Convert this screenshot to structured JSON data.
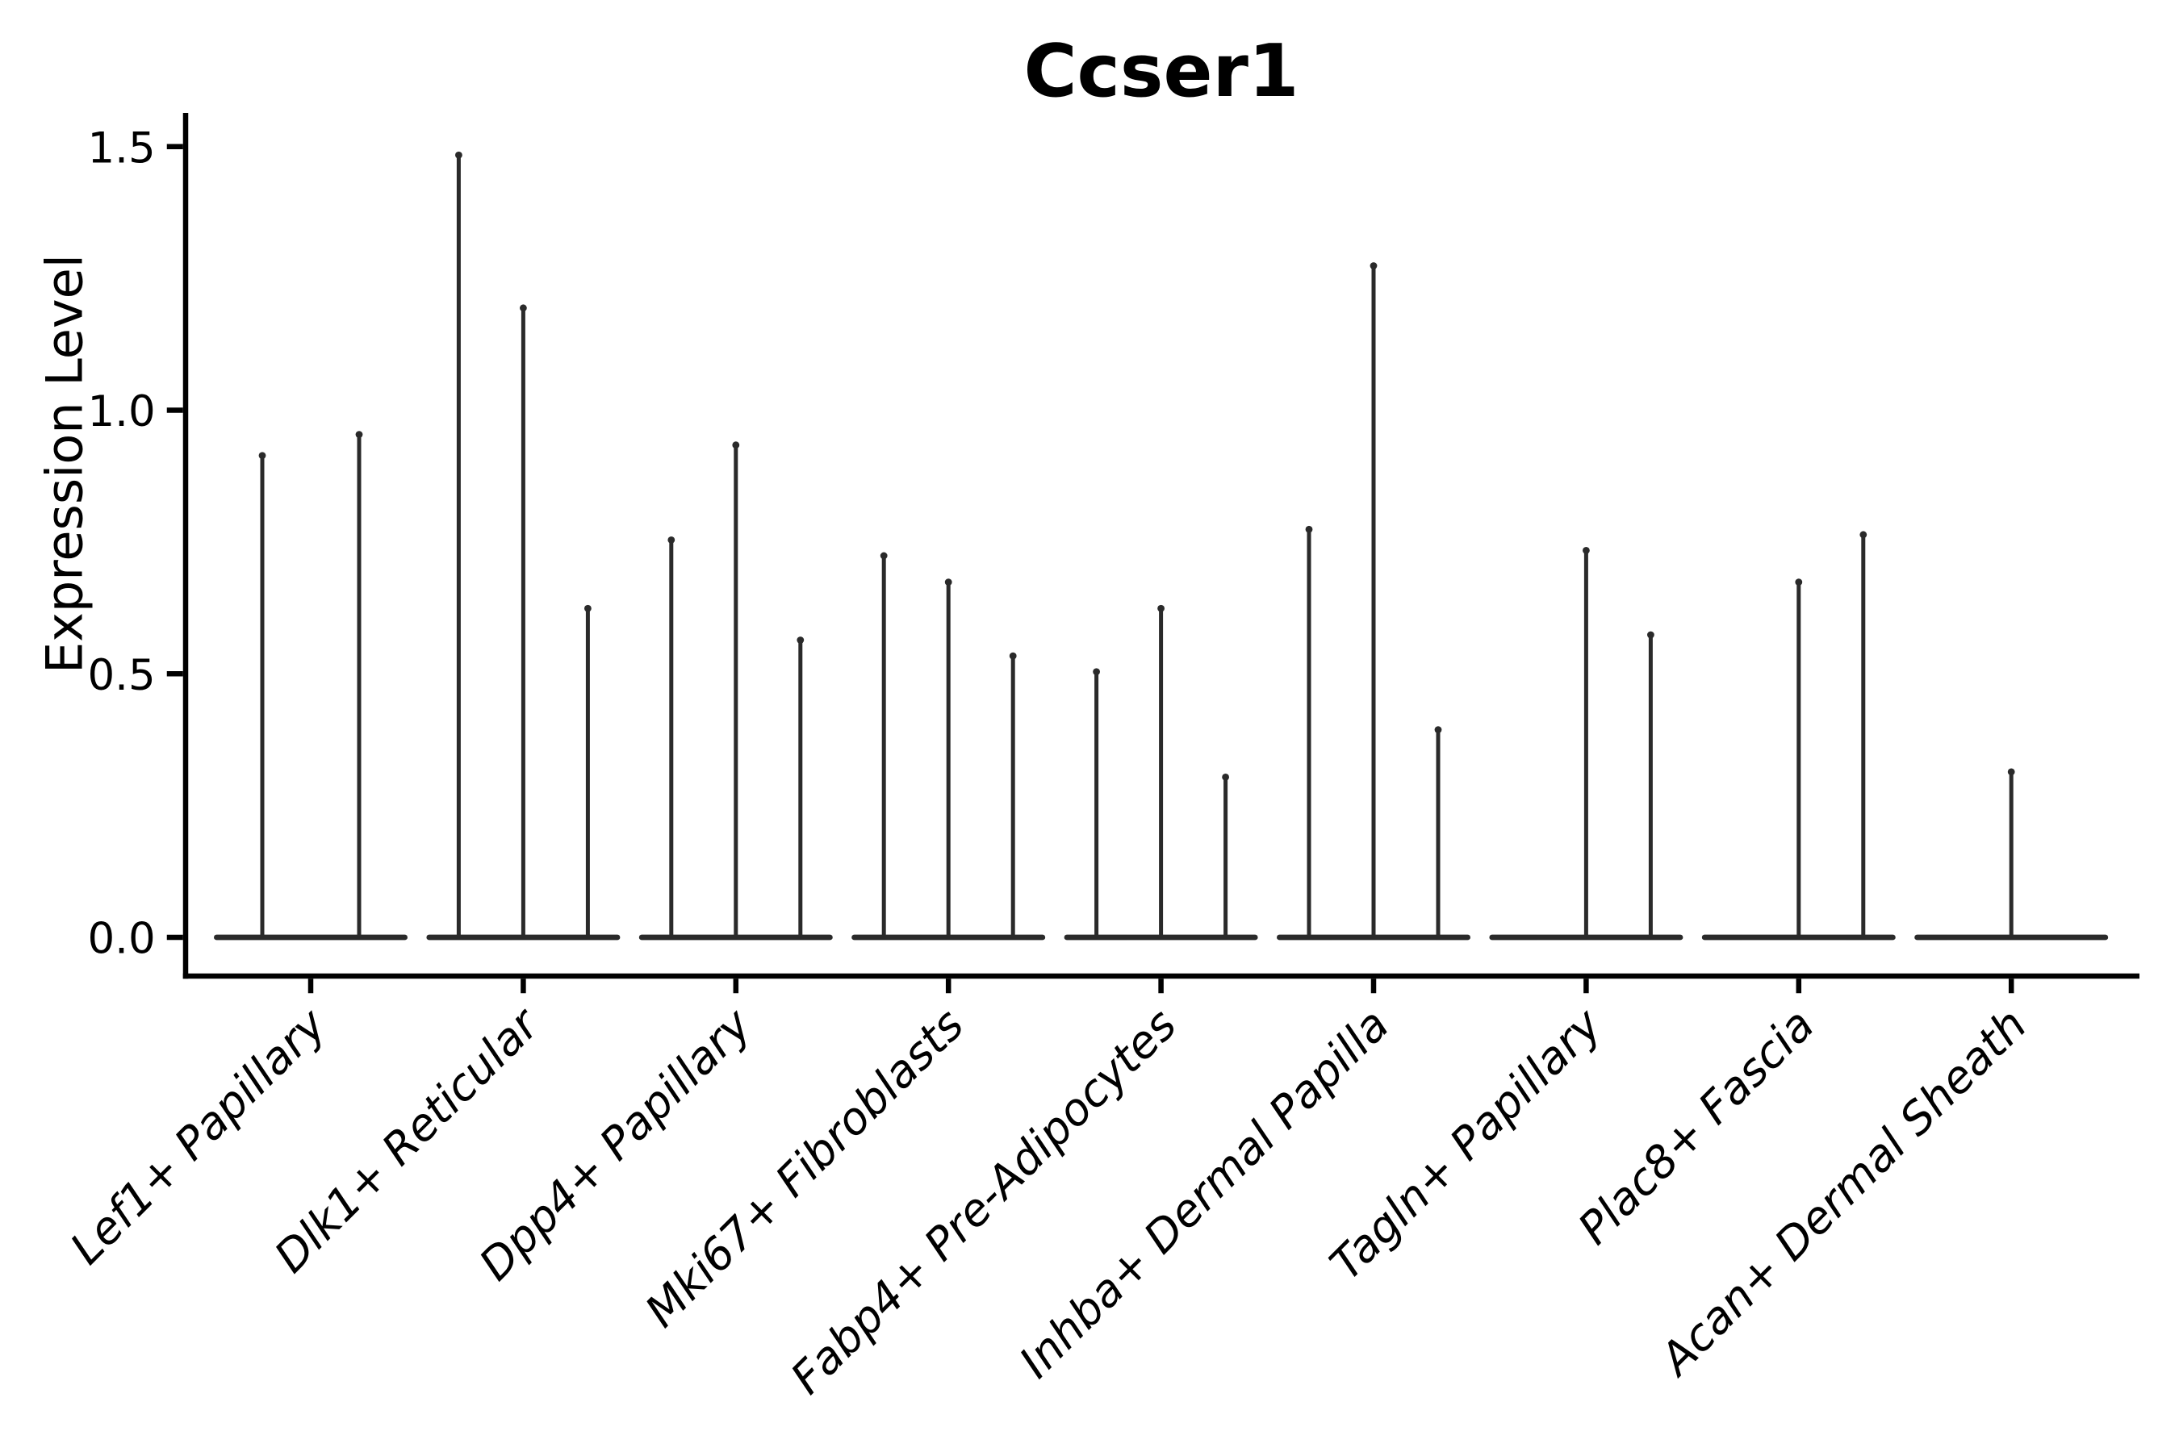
{
  "figure": {
    "title": "Ccser1",
    "ylabel": "Expression Level",
    "background": "#ffffff"
  },
  "chart_data": {
    "type": "violin",
    "title": "Ccser1",
    "xlabel": "",
    "ylabel": "Expression Level",
    "grid": false,
    "legend": null,
    "ylim": [
      -0.07,
      1.56
    ],
    "yticks": [
      {
        "value": 0.0,
        "label": "0.0"
      },
      {
        "value": 0.5,
        "label": "0.5"
      },
      {
        "value": 1.0,
        "label": "1.0"
      },
      {
        "value": 1.5,
        "label": "1.5"
      }
    ],
    "categories": [
      "Lef1+ Papillary",
      "Dlk1+ Reticular",
      "Dpp4+ Papillary",
      "Mki67+ Fibroblasts",
      "Fabp4+ Pre-Adipocytes",
      "Inhba+ Dermal Papilla",
      "Tagln+ Papillary",
      "Plac8+ Fascia",
      "Acan+ Dermal Sheath"
    ],
    "groups": [
      {
        "label": "Lef1+ Papillary",
        "violins": [
          {
            "dx": -60,
            "max": 0.92
          },
          {
            "dx": 60,
            "max": 0.96
          }
        ]
      },
      {
        "label": "Dlk1+ Reticular",
        "violins": [
          {
            "dx": -80,
            "max": 1.49
          },
          {
            "dx": 0,
            "max": 1.2
          },
          {
            "dx": 80,
            "max": 0.63
          }
        ]
      },
      {
        "label": "Dpp4+ Papillary",
        "violins": [
          {
            "dx": -80,
            "max": 0.76
          },
          {
            "dx": 0,
            "max": 0.94
          },
          {
            "dx": 80,
            "max": 0.57
          }
        ]
      },
      {
        "label": "Mki67+ Fibroblasts",
        "violins": [
          {
            "dx": -80,
            "max": 0.73
          },
          {
            "dx": 0,
            "max": 0.68
          },
          {
            "dx": 80,
            "max": 0.54
          }
        ]
      },
      {
        "label": "Fabp4+ Pre-Adipocytes",
        "violins": [
          {
            "dx": -80,
            "max": 0.51
          },
          {
            "dx": 0,
            "max": 0.63
          },
          {
            "dx": 80,
            "max": 0.31
          }
        ]
      },
      {
        "label": "Inhba+ Dermal Papilla",
        "violins": [
          {
            "dx": -80,
            "max": 0.78
          },
          {
            "dx": 0,
            "max": 1.28
          },
          {
            "dx": 80,
            "max": 0.4
          }
        ]
      },
      {
        "label": "Tagln+ Papillary",
        "violins": [
          {
            "dx": 0,
            "max": 0.74
          },
          {
            "dx": 80,
            "max": 0.58
          }
        ]
      },
      {
        "label": "Plac8+ Fascia",
        "violins": [
          {
            "dx": 0,
            "max": 0.68
          },
          {
            "dx": 80,
            "max": 0.77
          }
        ]
      },
      {
        "label": "Acan+ Dermal Sheath",
        "violins": [
          {
            "dx": 0,
            "max": 0.32
          }
        ]
      }
    ],
    "style": {
      "violin_color": "#2a2a2a",
      "axis_color": "#000000",
      "text_color": "#000000",
      "base_halfwidth": 120
    }
  }
}
